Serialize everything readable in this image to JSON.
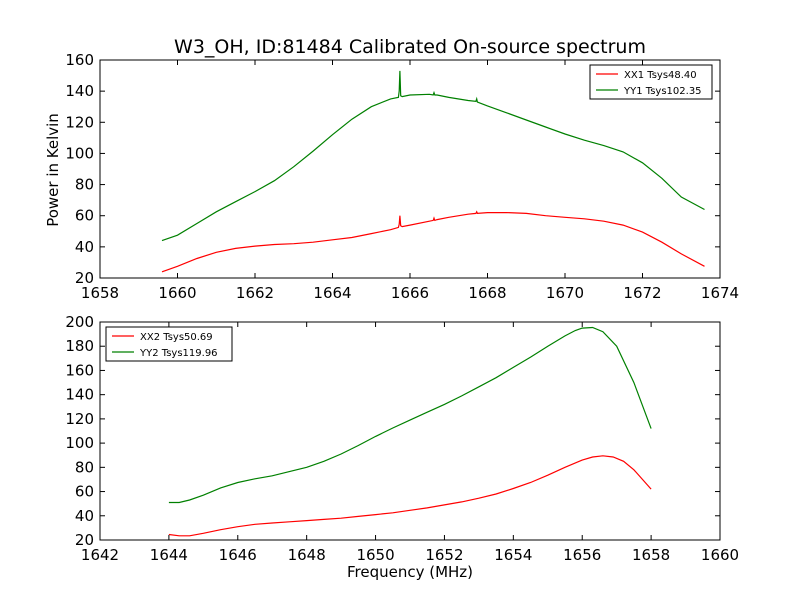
{
  "chart_data": [
    {
      "type": "line",
      "title": "W3_OH, ID:81484 Calibrated On-source spectrum",
      "xlabel": "",
      "ylabel": "Power in Kelvin",
      "xlim": [
        1658,
        1674
      ],
      "ylim": [
        20,
        160
      ],
      "xticks": [
        1658,
        1660,
        1662,
        1664,
        1666,
        1668,
        1670,
        1672,
        1674
      ],
      "yticks": [
        20,
        40,
        60,
        80,
        100,
        120,
        140,
        160
      ],
      "legend_position": "top-right",
      "grid": false,
      "series": [
        {
          "name": "XX1 Tsys48.40",
          "color": "#ff0000",
          "x": [
            1659.6,
            1660.0,
            1660.5,
            1661.0,
            1661.5,
            1662.0,
            1662.5,
            1663.0,
            1663.5,
            1664.0,
            1664.5,
            1665.0,
            1665.5,
            1665.7,
            1665.72,
            1665.74,
            1665.76,
            1665.8,
            1666.0,
            1666.5,
            1666.6,
            1666.62,
            1666.64,
            1666.7,
            1667.0,
            1667.5,
            1667.7,
            1667.72,
            1667.74,
            1668.0,
            1668.5,
            1669.0,
            1669.5,
            1670.0,
            1670.5,
            1671.0,
            1671.5,
            1672.0,
            1672.5,
            1673.0,
            1673.6
          ],
          "y": [
            24.0,
            27.5,
            32.5,
            36.5,
            39.0,
            40.5,
            41.5,
            42.0,
            43.0,
            44.5,
            46.0,
            48.5,
            51.0,
            52.5,
            54.5,
            60.0,
            53.5,
            53.0,
            54.0,
            56.5,
            57.0,
            58.5,
            57.0,
            57.5,
            59.0,
            61.0,
            61.5,
            62.5,
            61.5,
            62.0,
            62.0,
            61.5,
            60.0,
            59.0,
            58.0,
            56.5,
            54.0,
            49.5,
            43.0,
            35.5,
            27.5
          ]
        },
        {
          "name": "YY1 Tsys102.35",
          "color": "#008000",
          "x": [
            1659.6,
            1660.0,
            1660.5,
            1661.0,
            1661.5,
            1662.0,
            1662.5,
            1663.0,
            1663.5,
            1664.0,
            1664.5,
            1665.0,
            1665.5,
            1665.7,
            1665.72,
            1665.74,
            1665.76,
            1665.8,
            1666.0,
            1666.5,
            1666.6,
            1666.62,
            1666.64,
            1666.7,
            1667.0,
            1667.5,
            1667.7,
            1667.72,
            1667.74,
            1668.0,
            1668.5,
            1669.0,
            1669.5,
            1670.0,
            1670.5,
            1671.0,
            1671.5,
            1672.0,
            1672.5,
            1673.0,
            1673.6
          ],
          "y": [
            44.0,
            47.5,
            55.0,
            62.5,
            69.0,
            75.5,
            82.5,
            91.5,
            101.5,
            112.0,
            122.0,
            130.0,
            135.0,
            136.0,
            140.0,
            153.0,
            137.0,
            136.5,
            137.5,
            138.0,
            137.5,
            139.0,
            137.5,
            137.5,
            136.0,
            134.0,
            133.5,
            135.0,
            133.0,
            130.5,
            126.0,
            121.5,
            117.0,
            112.5,
            108.5,
            105.0,
            101.0,
            94.0,
            84.0,
            72.0,
            64.0
          ]
        }
      ]
    },
    {
      "type": "line",
      "title": "",
      "xlabel": "Frequency (MHz)",
      "ylabel": "",
      "xlim": [
        1642,
        1660
      ],
      "ylim": [
        20,
        200
      ],
      "xticks": [
        1642,
        1644,
        1646,
        1648,
        1650,
        1652,
        1654,
        1656,
        1658,
        1660
      ],
      "yticks": [
        20,
        40,
        60,
        80,
        100,
        120,
        140,
        160,
        180,
        200
      ],
      "legend_position": "top-left",
      "grid": false,
      "series": [
        {
          "name": "XX2 Tsys50.69",
          "color": "#ff0000",
          "x": [
            1644.0,
            1644.3,
            1644.6,
            1645.0,
            1645.5,
            1646.0,
            1646.5,
            1647.0,
            1647.5,
            1648.0,
            1648.5,
            1649.0,
            1649.5,
            1650.0,
            1650.5,
            1651.0,
            1651.5,
            1652.0,
            1652.5,
            1653.0,
            1653.5,
            1654.0,
            1654.5,
            1655.0,
            1655.5,
            1656.0,
            1656.3,
            1656.6,
            1656.9,
            1657.2,
            1657.5,
            1658.0
          ],
          "y": [
            24.5,
            23.5,
            23.5,
            25.5,
            28.5,
            31.0,
            33.0,
            34.0,
            35.0,
            36.0,
            37.0,
            38.0,
            39.5,
            41.0,
            42.5,
            44.5,
            46.5,
            49.0,
            51.5,
            54.5,
            58.0,
            62.5,
            67.5,
            73.5,
            80.0,
            86.0,
            88.5,
            89.5,
            88.5,
            85.0,
            78.0,
            62.0
          ]
        },
        {
          "name": "YY2 Tsys119.96",
          "color": "#008000",
          "x": [
            1644.0,
            1644.3,
            1644.6,
            1645.0,
            1645.5,
            1646.0,
            1646.5,
            1647.0,
            1647.5,
            1648.0,
            1648.5,
            1649.0,
            1649.5,
            1650.0,
            1650.5,
            1651.0,
            1651.5,
            1652.0,
            1652.5,
            1653.0,
            1653.5,
            1654.0,
            1654.5,
            1655.0,
            1655.5,
            1655.8,
            1656.0,
            1656.3,
            1656.6,
            1657.0,
            1657.5,
            1658.0
          ],
          "y": [
            51.0,
            51.0,
            53.0,
            57.0,
            63.0,
            67.5,
            70.5,
            73.0,
            76.5,
            80.0,
            85.0,
            91.0,
            98.0,
            105.5,
            112.5,
            119.0,
            125.5,
            132.0,
            139.0,
            146.5,
            154.0,
            162.5,
            171.0,
            180.0,
            188.5,
            193.0,
            195.0,
            195.5,
            192.0,
            180.0,
            150.0,
            112.0
          ]
        }
      ]
    }
  ],
  "colors": {
    "frame": "#000000",
    "background": "#ffffff"
  }
}
